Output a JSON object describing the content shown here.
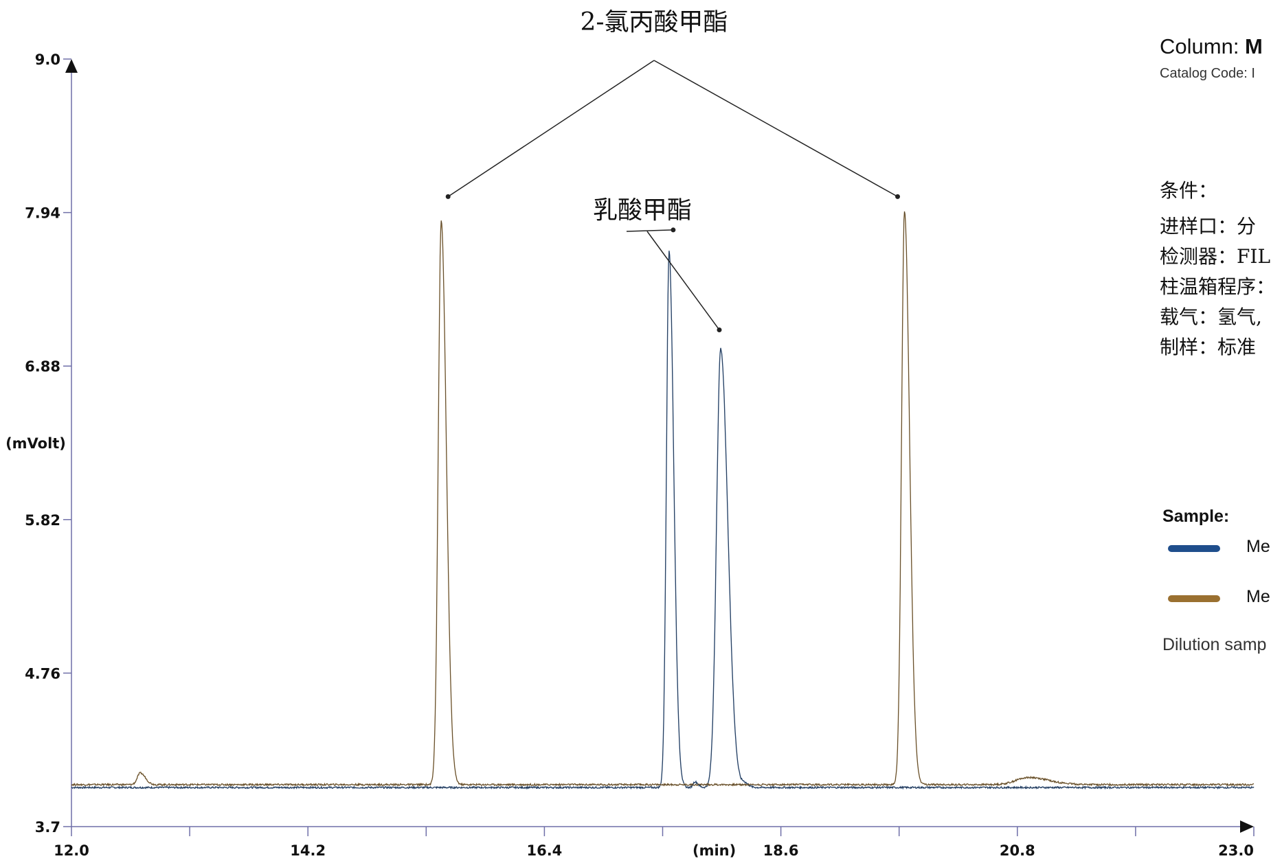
{
  "chart_data": {
    "type": "line",
    "xlabel": "(min)",
    "ylabel": "(mVolt)",
    "xlim": [
      12.0,
      23.0
    ],
    "ylim": [
      3.7,
      9.0
    ],
    "x_ticks": [
      "12.0",
      "14.2",
      "16.4",
      "18.6",
      "20.8",
      "23.0"
    ],
    "y_ticks": [
      "3.7",
      "4.76",
      "5.82",
      "6.88",
      "7.94",
      "9.0"
    ],
    "series": [
      {
        "color": "#1f4e8c",
        "baseline": 3.97,
        "peaks": [
          [
            17.56,
            7.67,
            0.045
          ],
          [
            17.62,
            4.0,
            0.04
          ],
          [
            17.8,
            4.01,
            0.03
          ],
          [
            18.04,
            7.0,
            0.07
          ],
          [
            18.26,
            4.0,
            0.04
          ]
        ]
      },
      {
        "color": "#9a7030",
        "baseline": 3.99,
        "peaks": [
          [
            12.64,
            4.07,
            0.05
          ],
          [
            15.44,
            7.88,
            0.05
          ],
          [
            19.75,
            7.95,
            0.05
          ],
          [
            20.9,
            4.04,
            0.2
          ]
        ]
      }
    ],
    "annotations": [
      {
        "text": "2-氯丙酸甲酯",
        "peaks_x": [
          15.44,
          19.75
        ]
      },
      {
        "text": "乳酸甲酯",
        "peaks_x": [
          17.56,
          18.04
        ]
      }
    ]
  },
  "panel": {
    "column_prefix": "Column: ",
    "column_value": "M",
    "catalog": "Catalog Code: I",
    "conditions_title": "条件：",
    "conditions": [
      "进样口：分",
      "检测器：FIL",
      "柱温箱程序：",
      "载气：氢气,",
      "制样：标准"
    ],
    "sample_title": "Sample:",
    "legend": [
      {
        "label": "Me",
        "color": "#1f4e8c"
      },
      {
        "label": "Me",
        "color": "#9a7030"
      }
    ],
    "dilution": "Dilution samp"
  }
}
